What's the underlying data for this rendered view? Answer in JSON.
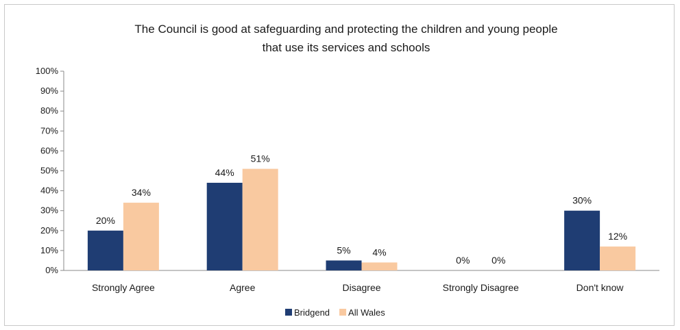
{
  "chart_data": {
    "type": "bar",
    "title_lines": [
      "The Council is good at safeguarding and protecting the children and young people",
      "that use its services and schools"
    ],
    "categories": [
      "Strongly Agree",
      "Agree",
      "Disagree",
      "Strongly Disagree",
      "Don't know"
    ],
    "series": [
      {
        "name": "Bridgend",
        "values": [
          20,
          44,
          5,
          0,
          30
        ],
        "labels": [
          "20%",
          "44%",
          "5%",
          "0%",
          "30%"
        ],
        "color": "#1f3d73"
      },
      {
        "name": "All Wales",
        "values": [
          34,
          51,
          4,
          0,
          12
        ],
        "labels": [
          "34%",
          "51%",
          "4%",
          "0%",
          "12%"
        ],
        "color": "#f9c9a0"
      }
    ],
    "ylim": [
      0,
      100
    ],
    "yticks": [
      0,
      10,
      20,
      30,
      40,
      50,
      60,
      70,
      80,
      90,
      100
    ],
    "ytick_labels": [
      "0%",
      "10%",
      "20%",
      "30%",
      "40%",
      "50%",
      "60%",
      "70%",
      "80%",
      "90%",
      "100%"
    ],
    "grid": false,
    "legend_position": "bottom"
  }
}
